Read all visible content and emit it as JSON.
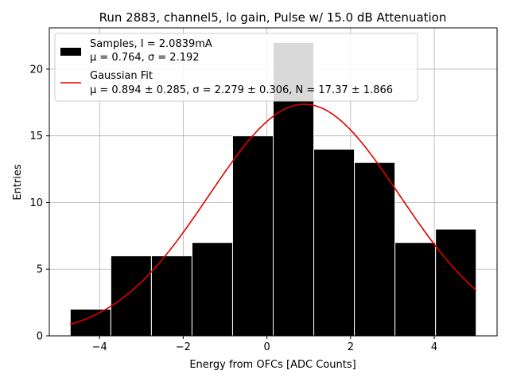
{
  "chart_data": {
    "type": "bar",
    "title": "Run 2883, channel5, lo gain, Pulse w/ 15.0 dB Attenuation",
    "xlabel": "Energy from OFCs [ADC Counts]",
    "ylabel": "Entries",
    "xlim": [
      -5.2,
      5.5
    ],
    "ylim": [
      0,
      23.1
    ],
    "grid": true,
    "xticks": [
      -4,
      -2,
      0,
      2,
      4
    ],
    "xtick_labels": [
      "−4",
      "−2",
      "0",
      "2",
      "4"
    ],
    "yticks": [
      0,
      5,
      10,
      15,
      20
    ],
    "ytick_labels": [
      "0",
      "5",
      "10",
      "15",
      "20"
    ],
    "bins": [
      {
        "lo": -4.7,
        "hi": -3.73,
        "count": 2
      },
      {
        "lo": -3.73,
        "hi": -2.76,
        "count": 6
      },
      {
        "lo": -2.76,
        "hi": -1.79,
        "count": 6
      },
      {
        "lo": -1.79,
        "hi": -0.82,
        "count": 7
      },
      {
        "lo": -0.82,
        "hi": 0.15,
        "count": 15
      },
      {
        "lo": 0.15,
        "hi": 1.12,
        "count": 22
      },
      {
        "lo": 1.12,
        "hi": 2.09,
        "count": 14
      },
      {
        "lo": 2.09,
        "hi": 3.06,
        "count": 13
      },
      {
        "lo": 3.06,
        "hi": 4.03,
        "count": 7
      },
      {
        "lo": 4.03,
        "hi": 5.0,
        "count": 8
      }
    ],
    "series": [
      {
        "name": "Samples, I = 2.0839mA",
        "kind": "histogram",
        "color": "#000000",
        "stats_line": "μ = 0.764, σ = 2.192"
      },
      {
        "name": "Gaussian Fit",
        "kind": "line",
        "color": "#e00000",
        "stats_line": "μ = 0.894 ± 0.285, σ = 2.279 ± 0.306, N = 17.37 ± 1.866",
        "mu": 0.894,
        "sigma": 2.279,
        "N": 17.37,
        "x_range": [
          -4.7,
          5.0
        ]
      }
    ],
    "legend_position": "top-left"
  }
}
